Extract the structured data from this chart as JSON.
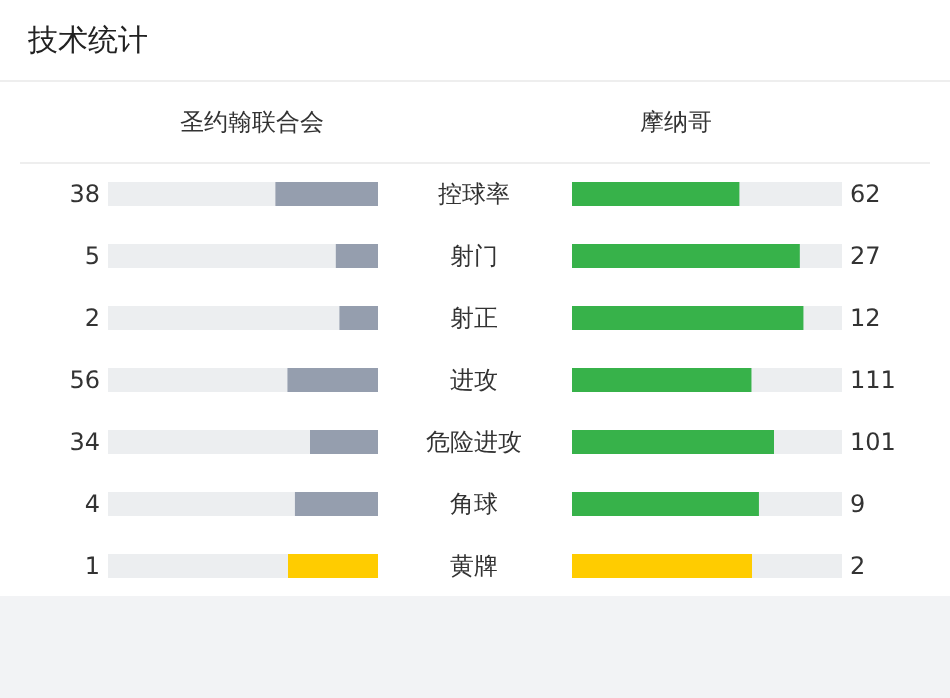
{
  "chart_data": {
    "type": "other",
    "data_labels": true,
    "title": "技术统计",
    "categories": [
      "控球率",
      "射门",
      "射正",
      "进攻",
      "危险进攻",
      "角球",
      "黄牌"
    ],
    "series": [
      {
        "name": "圣约翰联合会",
        "colors": [
          "#959eae",
          "#959eae",
          "#959eae",
          "#959eae",
          "#959eae",
          "#959eae",
          "#ffcc00"
        ],
        "values": [
          38,
          5,
          2,
          56,
          34,
          4,
          1
        ]
      },
      {
        "name": "摩纳哥",
        "colors": [
          "#37b24a",
          "#37b24a",
          "#37b24a",
          "#37b24a",
          "#37b24a",
          "#37b24a",
          "#ffcc00"
        ],
        "values": [
          62,
          27,
          12,
          111,
          101,
          9,
          2
        ]
      }
    ]
  }
}
